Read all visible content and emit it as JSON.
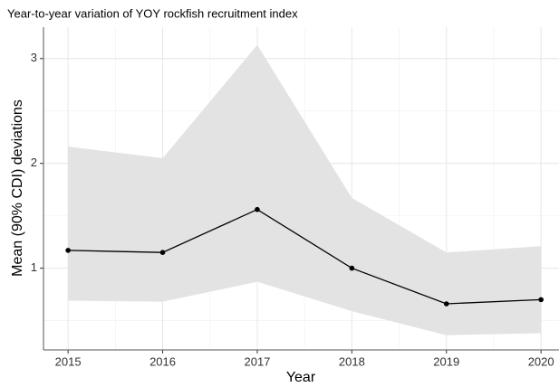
{
  "chart_data": {
    "type": "line",
    "title": "Year-to-year variation of YOY rockfish recruitment index",
    "x_label": "Year",
    "y_label": "Mean (90% CDI) deviations",
    "x": [
      2015,
      2016,
      2017,
      2018,
      2019,
      2020
    ],
    "values": [
      1.17,
      1.15,
      1.56,
      1.0,
      0.66,
      0.7
    ],
    "lower": [
      0.69,
      0.68,
      0.87,
      0.59,
      0.36,
      0.38
    ],
    "upper": [
      2.16,
      2.05,
      3.13,
      1.67,
      1.15,
      1.21
    ],
    "color": "#000000",
    "band_color": "#e3e3e3",
    "xlim": [
      2014.74,
      2020.19
    ],
    "xticks": [
      2015,
      2016,
      2017,
      2018,
      2019,
      2020
    ],
    "ylim": [
      0.22,
      3.3
    ],
    "yticks": [
      1,
      2,
      3
    ],
    "grid": true
  }
}
